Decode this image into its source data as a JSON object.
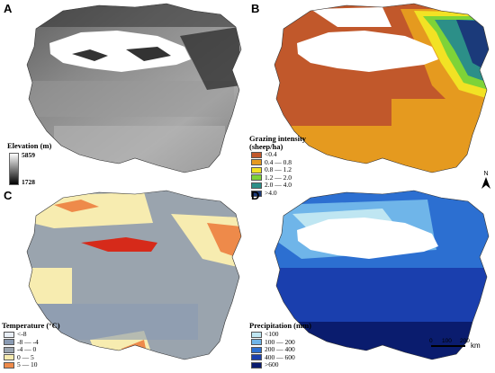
{
  "panels": {
    "a": {
      "letter": "A",
      "legend_title": "Elevation (m)",
      "max_label": "5859",
      "min_label": "1728"
    },
    "b": {
      "letter": "B",
      "legend_title_line1": "Grazing intensity",
      "legend_title_line2": "(sheep/ha)",
      "classes": [
        {
          "label": "<0.4",
          "color": "#c1582b"
        },
        {
          "label": "0.4 — 0.8",
          "color": "#e59a1f"
        },
        {
          "label": "0.8 — 1.2",
          "color": "#f2e224"
        },
        {
          "label": "1.2 — 2.0",
          "color": "#7ed338"
        },
        {
          "label": "2.0 — 4.0",
          "color": "#2c8f88"
        },
        {
          "label": ">4.0",
          "color": "#1b3a7a"
        }
      ]
    },
    "c": {
      "letter": "C",
      "legend_title": "Temperature (°C)",
      "classes": [
        {
          "label": "<-8",
          "color": "#e8eef5"
        },
        {
          "label": "-8 — -4",
          "color": "#8a9bb3"
        },
        {
          "label": "-4 — 0",
          "color": "#9aa4ae"
        },
        {
          "label": "0 — 5",
          "color": "#f7ecb0"
        },
        {
          "label": "5 — 10",
          "color": "#ee8a4a"
        }
      ]
    },
    "d": {
      "letter": "D",
      "legend_title": "Precipitation (mm)",
      "classes": [
        {
          "label": "<100",
          "color": "#bfe6f2"
        },
        {
          "label": "100 — 200",
          "color": "#6fb5e9"
        },
        {
          "label": "200 — 400",
          "color": "#2c6fd1"
        },
        {
          "label": "400 — 600",
          "color": "#1a3fae"
        },
        {
          "label": ">600",
          "color": "#0a1c6e"
        }
      ]
    }
  },
  "north_arrow": {
    "label": "N"
  },
  "scale_bar": {
    "ticks": [
      "0",
      "100",
      "200"
    ],
    "unit": "km"
  }
}
